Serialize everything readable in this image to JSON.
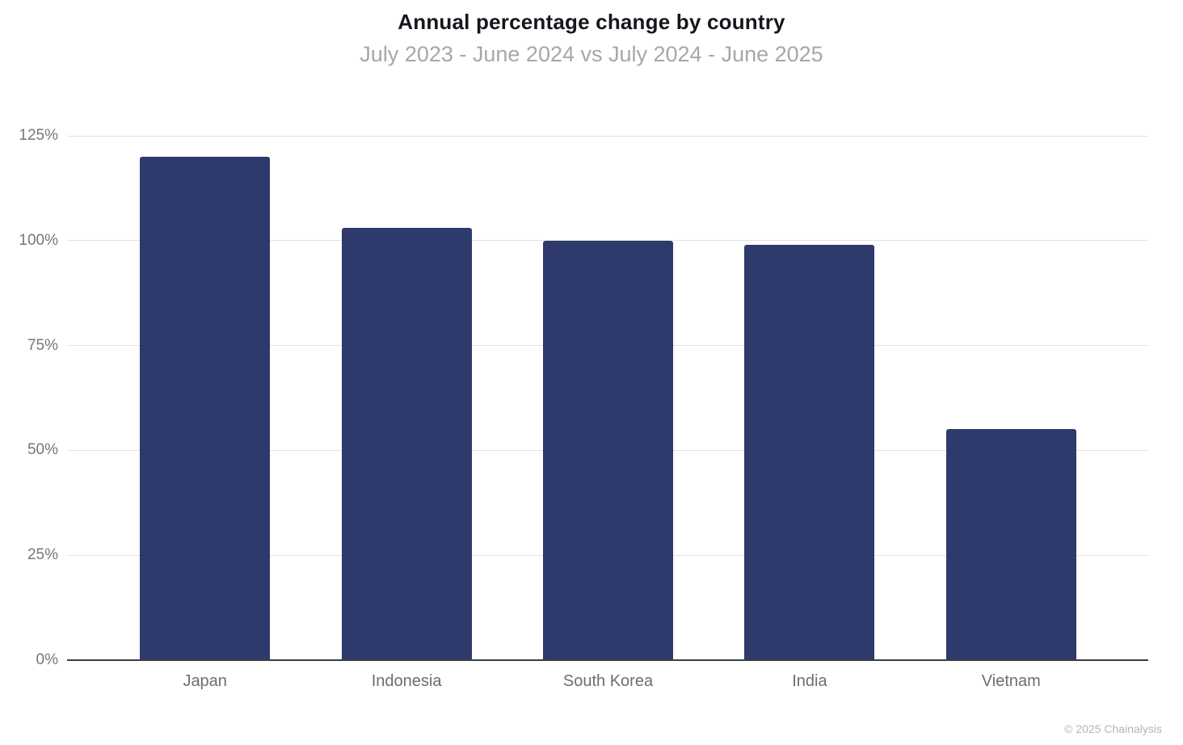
{
  "chart_data": {
    "type": "bar",
    "title": "Annual percentage change by country",
    "subtitle": "July 2023 - June 2024 vs July 2024 - June 2025",
    "categories": [
      "Japan",
      "Indonesia",
      "South Korea",
      "India",
      "Vietnam"
    ],
    "values": [
      120,
      103,
      100,
      99,
      55
    ],
    "value_suffix": "%",
    "xlabel": "",
    "ylabel": "",
    "ylim": [
      0,
      125
    ],
    "ytick_step": 25,
    "ytick_labels": [
      "0%",
      "25%",
      "50%",
      "75%",
      "100%",
      "125%"
    ],
    "grid": true,
    "legend": "none",
    "bar_color": "#2d3a6b"
  },
  "colors": {
    "background": "#ffffff",
    "title": "#16161d",
    "subtitle": "#a6a6ad",
    "gridline": "#e2e2e2",
    "axis_line": "#3d3d3d",
    "tick_label": "#76767b",
    "category_label": "#6d6d72",
    "attribution": "#b5b5ba"
  },
  "footer": {
    "attribution": "© 2025 Chainalysis"
  }
}
